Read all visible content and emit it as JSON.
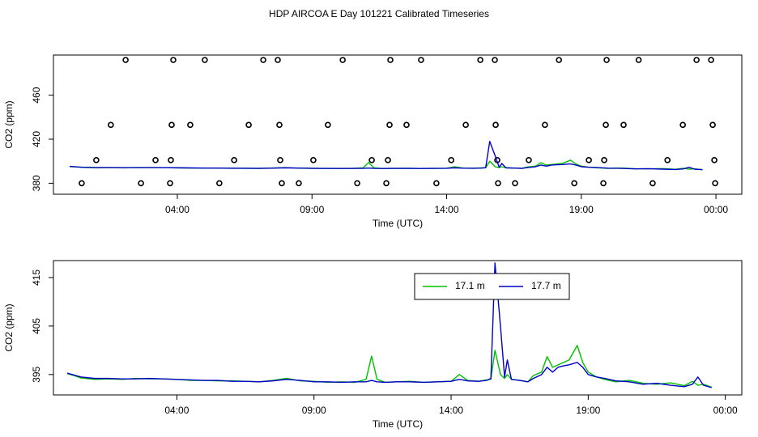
{
  "title": "HDP AIRCOA E  Day 101221  Calibrated Timeseries",
  "chart_data": [
    {
      "type": "line",
      "xlabel": "Time (UTC)",
      "ylabel": "CO2 (ppm)",
      "xlim": [
        -0.6,
        24.96
      ],
      "ylim": [
        370,
        496.5
      ],
      "xticks": [
        {
          "value": 4,
          "label": "04:00"
        },
        {
          "value": 9,
          "label": "09:00"
        },
        {
          "value": 14,
          "label": "14:00"
        },
        {
          "value": 19,
          "label": "19:00"
        },
        {
          "value": 24,
          "label": "00:00"
        }
      ],
      "yticks": [
        380,
        420,
        460
      ],
      "x": [
        0,
        0.25,
        0.5,
        1,
        1.5,
        2,
        2.5,
        3,
        3.5,
        4,
        4.5,
        5,
        5.5,
        6,
        6.5,
        7,
        7.5,
        8,
        8.5,
        9,
        9.5,
        10,
        10.5,
        10.9,
        11.1,
        11.3,
        11.6,
        12,
        12.5,
        13,
        13.5,
        14,
        14.3,
        14.6,
        15,
        15.3,
        15.45,
        15.6,
        15.8,
        15.95,
        16.05,
        16.2,
        16.5,
        16.8,
        17.0,
        17.3,
        17.5,
        17.7,
        17.9,
        18.1,
        18.3,
        18.6,
        18.8,
        19.0,
        19.3,
        19.6,
        20,
        20.5,
        21,
        21.5,
        22,
        22.5,
        22.8,
        23.0,
        23.2,
        23.5
      ],
      "series": [
        {
          "color": "#00c000",
          "values": [
            395.2,
            394.8,
            394.3,
            394.0,
            394.1,
            394.0,
            394.2,
            394.1,
            394.1,
            394.0,
            393.8,
            393.8,
            393.7,
            393.7,
            393.6,
            393.5,
            393.8,
            394.2,
            393.7,
            393.6,
            393.4,
            393.5,
            393.4,
            394.0,
            398.8,
            394.0,
            393.4,
            393.5,
            393.6,
            393.4,
            393.5,
            393.6,
            395.0,
            393.8,
            393.6,
            393.9,
            394.0,
            400.0,
            395.0,
            394.2,
            395.0,
            394.0,
            393.8,
            393.5,
            394.8,
            395.5,
            398.7,
            396.5,
            397.0,
            397.5,
            398.0,
            401.0,
            397.5,
            395.5,
            394.5,
            394.0,
            393.5,
            393.8,
            393.2,
            393.0,
            393.3,
            392.7,
            393.6,
            392.8,
            393.0,
            392.4
          ]
        },
        {
          "color": "#0000c8",
          "values": [
            395.3,
            394.9,
            394.5,
            394.2,
            394.2,
            394.1,
            394.1,
            394.2,
            394.1,
            394.0,
            393.9,
            393.8,
            393.8,
            393.6,
            393.6,
            393.5,
            393.7,
            394.0,
            393.8,
            393.5,
            393.5,
            393.4,
            393.5,
            393.5,
            393.8,
            393.5,
            393.4,
            393.5,
            393.5,
            393.4,
            393.5,
            393.6,
            394.0,
            393.7,
            393.6,
            393.8,
            394.2,
            418.0,
            405.0,
            394.5,
            398.0,
            394.0,
            393.8,
            393.5,
            394.2,
            395.0,
            396.5,
            395.5,
            396.5,
            396.8,
            397.0,
            397.5,
            396.5,
            395.0,
            394.5,
            394.2,
            393.7,
            393.5,
            393.0,
            393.2,
            392.8,
            392.5,
            393.0,
            394.5,
            392.8,
            392.3
          ]
        }
      ],
      "points": {
        "color": "#000000",
        "x": [
          2.08,
          3.85,
          5.02,
          7.19,
          7.73,
          10.14,
          11.91,
          13.05,
          15.25,
          15.79,
          18.17,
          19.94,
          21.13,
          23.28,
          23.82,
          1.53,
          3.79,
          4.48,
          6.65,
          7.79,
          9.59,
          11.88,
          12.51,
          14.71,
          15.82,
          17.65,
          19.91,
          20.57,
          22.77,
          23.88,
          0.99,
          3.19,
          3.76,
          6.11,
          7.82,
          9.05,
          11.22,
          11.82,
          14.17,
          15.88,
          17.05,
          19.28,
          19.85,
          22.2,
          23.94,
          0.45,
          2.65,
          3.73,
          5.56,
          7.88,
          8.51,
          10.68,
          11.76,
          13.62,
          15.91,
          16.54,
          18.74,
          19.82,
          21.65,
          23.97
        ],
        "values": [
          492,
          492,
          492,
          492,
          492,
          492,
          492,
          492,
          492,
          492,
          492,
          492,
          492,
          492,
          492,
          433,
          433,
          433,
          433,
          433,
          433,
          433,
          433,
          433,
          433,
          433,
          433,
          433,
          433,
          433,
          401,
          401,
          401,
          401,
          401,
          401,
          401,
          401,
          401,
          401,
          401,
          401,
          401,
          401,
          401,
          380,
          380,
          380,
          380,
          380,
          380,
          380,
          380,
          380,
          380,
          380,
          380,
          380,
          380,
          380
        ]
      }
    },
    {
      "type": "line",
      "xlabel": "Time (UTC)",
      "ylabel": "CO2 (ppm)",
      "xlim": [
        -0.5,
        24.6
      ],
      "ylim": [
        390.8,
        418.5
      ],
      "xticks": [
        {
          "value": 4,
          "label": "04:00"
        },
        {
          "value": 9,
          "label": "09:00"
        },
        {
          "value": 14,
          "label": "14:00"
        },
        {
          "value": 19,
          "label": "19:00"
        },
        {
          "value": 24,
          "label": "00:00"
        }
      ],
      "yticks": [
        395,
        405,
        415
      ],
      "legend": "top",
      "x": [
        0,
        0.25,
        0.5,
        1,
        1.5,
        2,
        2.5,
        3,
        3.5,
        4,
        4.5,
        5,
        5.5,
        6,
        6.5,
        7,
        7.5,
        8,
        8.5,
        9,
        9.5,
        10,
        10.5,
        10.9,
        11.1,
        11.3,
        11.6,
        12,
        12.5,
        13,
        13.5,
        14,
        14.3,
        14.6,
        15,
        15.3,
        15.45,
        15.6,
        15.8,
        15.95,
        16.05,
        16.2,
        16.5,
        16.8,
        17.0,
        17.3,
        17.5,
        17.7,
        17.9,
        18.1,
        18.3,
        18.6,
        18.8,
        19.0,
        19.3,
        19.6,
        20,
        20.5,
        21,
        21.5,
        22,
        22.5,
        22.8,
        23.0,
        23.2,
        23.5
      ],
      "series": [
        {
          "name": "17.1 m",
          "color": "#00c000",
          "values": [
            395.2,
            394.8,
            394.3,
            394.0,
            394.1,
            394.0,
            394.2,
            394.1,
            394.1,
            394.0,
            393.8,
            393.8,
            393.7,
            393.7,
            393.6,
            393.5,
            393.8,
            394.2,
            393.7,
            393.6,
            393.4,
            393.5,
            393.4,
            394.0,
            398.8,
            394.0,
            393.4,
            393.5,
            393.6,
            393.4,
            393.5,
            393.6,
            395.0,
            393.8,
            393.6,
            393.9,
            394.0,
            400.0,
            395.0,
            394.2,
            395.0,
            394.0,
            393.8,
            393.5,
            394.8,
            395.5,
            398.7,
            396.5,
            397.0,
            397.5,
            398.0,
            401.0,
            397.5,
            395.5,
            394.5,
            394.0,
            393.5,
            393.8,
            393.2,
            393.0,
            393.3,
            392.7,
            393.6,
            392.8,
            393.0,
            392.4
          ]
        },
        {
          "name": "17.7 m",
          "color": "#0000c8",
          "values": [
            395.3,
            394.9,
            394.5,
            394.2,
            394.2,
            394.1,
            394.1,
            394.2,
            394.1,
            394.0,
            393.9,
            393.8,
            393.8,
            393.6,
            393.6,
            393.5,
            393.7,
            394.0,
            393.8,
            393.5,
            393.5,
            393.4,
            393.5,
            393.5,
            393.8,
            393.5,
            393.4,
            393.5,
            393.5,
            393.4,
            393.5,
            393.6,
            394.0,
            393.7,
            393.6,
            393.8,
            394.2,
            418.0,
            405.0,
            394.5,
            398.0,
            394.0,
            393.8,
            393.5,
            394.2,
            395.0,
            396.5,
            395.5,
            396.5,
            396.8,
            397.0,
            397.5,
            396.5,
            395.0,
            394.5,
            394.2,
            393.7,
            393.5,
            393.0,
            393.2,
            392.8,
            392.5,
            393.0,
            394.5,
            392.8,
            392.3
          ]
        }
      ]
    }
  ]
}
